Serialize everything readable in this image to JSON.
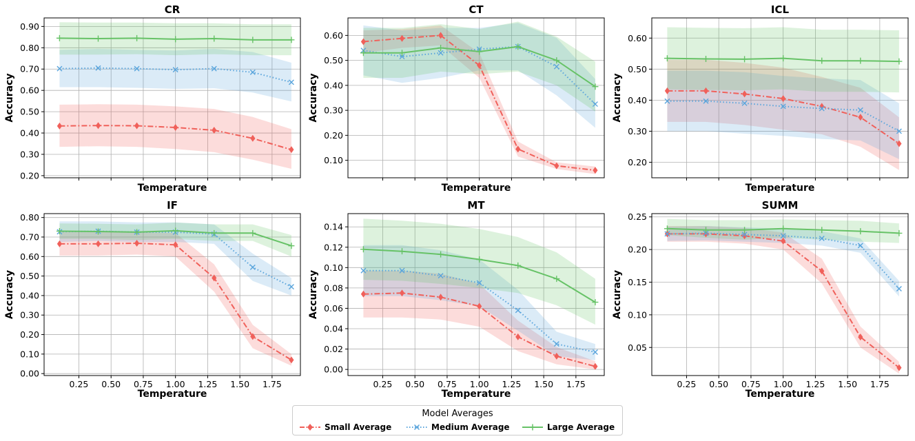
{
  "legend": {
    "title": "Model Averages",
    "entries": [
      "Small Average",
      "Medium Average",
      "Large Average"
    ]
  },
  "series_styles": [
    {
      "name": "Small Average",
      "color": "#f0605a",
      "marker": "diamond",
      "dash": "dashdot"
    },
    {
      "name": "Medium Average",
      "color": "#5aa5dc",
      "marker": "x",
      "dash": "dotted"
    },
    {
      "name": "Large Average",
      "color": "#66c266",
      "marker": "plus",
      "dash": "solid"
    }
  ],
  "chart_data": [
    {
      "type": "line",
      "title": "CR",
      "xlabel": "Temperature",
      "ylabel": "Accuracy",
      "x": [
        0.1,
        0.4,
        0.7,
        1.0,
        1.3,
        1.6,
        1.9
      ],
      "xlim": [
        -0.02,
        1.97
      ],
      "ylim": [
        0.19,
        0.94
      ],
      "xticks": [
        0.25,
        0.5,
        0.75,
        1.0,
        1.25,
        1.5,
        1.75
      ],
      "xtick_labels_visible": false,
      "yticks": [
        0.2,
        0.3,
        0.4,
        0.5,
        0.6,
        0.7,
        0.8,
        0.9
      ],
      "ytick_labels": [
        "0.20",
        "0.30",
        "0.40",
        "0.50",
        "0.60",
        "0.70",
        "0.80",
        "0.90"
      ],
      "grid": true,
      "series": [
        {
          "name": "Small Average",
          "values": [
            0.433,
            0.435,
            0.434,
            0.426,
            0.413,
            0.375,
            0.322
          ],
          "lower": [
            0.335,
            0.338,
            0.335,
            0.325,
            0.31,
            0.275,
            0.232
          ],
          "upper": [
            0.533,
            0.535,
            0.533,
            0.525,
            0.513,
            0.475,
            0.418
          ]
        },
        {
          "name": "Medium Average",
          "values": [
            0.702,
            0.705,
            0.702,
            0.697,
            0.702,
            0.685,
            0.638
          ],
          "lower": [
            0.615,
            0.615,
            0.612,
            0.607,
            0.61,
            0.59,
            0.548
          ],
          "upper": [
            0.79,
            0.795,
            0.79,
            0.787,
            0.795,
            0.78,
            0.73
          ]
        },
        {
          "name": "Large Average",
          "values": [
            0.845,
            0.843,
            0.845,
            0.84,
            0.843,
            0.837,
            0.837
          ],
          "lower": [
            0.768,
            0.768,
            0.77,
            0.765,
            0.77,
            0.765,
            0.765
          ],
          "upper": [
            0.92,
            0.918,
            0.918,
            0.915,
            0.915,
            0.91,
            0.91
          ]
        }
      ]
    },
    {
      "type": "line",
      "title": "CT",
      "xlabel": "Temperature",
      "ylabel": "Accuracy",
      "x": [
        0.1,
        0.4,
        0.7,
        1.0,
        1.3,
        1.6,
        1.9
      ],
      "xlim": [
        -0.02,
        1.97
      ],
      "ylim": [
        0.03,
        0.67
      ],
      "xticks": [
        0.25,
        0.5,
        0.75,
        1.0,
        1.25,
        1.5,
        1.75
      ],
      "xtick_labels_visible": false,
      "yticks": [
        0.1,
        0.2,
        0.3,
        0.4,
        0.5,
        0.6
      ],
      "ytick_labels": [
        "0.10",
        "0.20",
        "0.30",
        "0.40",
        "0.50",
        "0.60"
      ],
      "grid": true,
      "series": [
        {
          "name": "Small Average",
          "values": [
            0.575,
            0.588,
            0.6,
            0.48,
            0.145,
            0.078,
            0.06
          ],
          "lower": [
            0.53,
            0.55,
            0.56,
            0.43,
            0.115,
            0.065,
            0.045
          ],
          "upper": [
            0.62,
            0.625,
            0.64,
            0.53,
            0.175,
            0.092,
            0.075
          ]
        },
        {
          "name": "Medium Average",
          "values": [
            0.54,
            0.515,
            0.53,
            0.545,
            0.555,
            0.475,
            0.325
          ],
          "lower": [
            0.44,
            0.41,
            0.43,
            0.46,
            0.46,
            0.36,
            0.23
          ],
          "upper": [
            0.64,
            0.62,
            0.63,
            0.63,
            0.65,
            0.59,
            0.425
          ]
        },
        {
          "name": "Large Average",
          "values": [
            0.53,
            0.53,
            0.55,
            0.535,
            0.555,
            0.5,
            0.395
          ],
          "lower": [
            0.43,
            0.43,
            0.455,
            0.445,
            0.455,
            0.4,
            0.295
          ],
          "upper": [
            0.63,
            0.63,
            0.645,
            0.625,
            0.655,
            0.595,
            0.495
          ]
        }
      ]
    },
    {
      "type": "line",
      "title": "ICL",
      "xlabel": "Temperature",
      "ylabel": "Accuracy",
      "x": [
        0.1,
        0.4,
        0.7,
        1.0,
        1.3,
        1.6,
        1.9
      ],
      "xlim": [
        -0.02,
        1.97
      ],
      "ylim": [
        0.15,
        0.665
      ],
      "xticks": [
        0.25,
        0.5,
        0.75,
        1.0,
        1.25,
        1.5,
        1.75
      ],
      "xtick_labels_visible": false,
      "yticks": [
        0.2,
        0.3,
        0.4,
        0.5,
        0.6
      ],
      "ytick_labels": [
        "0.20",
        "0.30",
        "0.40",
        "0.50",
        "0.60"
      ],
      "grid": true,
      "series": [
        {
          "name": "Small Average",
          "values": [
            0.43,
            0.43,
            0.42,
            0.405,
            0.38,
            0.345,
            0.26
          ],
          "lower": [
            0.33,
            0.33,
            0.32,
            0.305,
            0.29,
            0.25,
            0.175
          ],
          "upper": [
            0.53,
            0.53,
            0.52,
            0.505,
            0.475,
            0.44,
            0.345
          ]
        },
        {
          "name": "Medium Average",
          "values": [
            0.397,
            0.397,
            0.39,
            0.38,
            0.373,
            0.368,
            0.3
          ],
          "lower": [
            0.3,
            0.3,
            0.292,
            0.285,
            0.275,
            0.27,
            0.21
          ],
          "upper": [
            0.495,
            0.495,
            0.49,
            0.478,
            0.47,
            0.465,
            0.39
          ]
        },
        {
          "name": "Large Average",
          "values": [
            0.535,
            0.533,
            0.532,
            0.535,
            0.527,
            0.527,
            0.525
          ],
          "lower": [
            0.435,
            0.433,
            0.432,
            0.435,
            0.427,
            0.427,
            0.425
          ],
          "upper": [
            0.635,
            0.633,
            0.632,
            0.635,
            0.627,
            0.627,
            0.625
          ]
        }
      ]
    },
    {
      "type": "line",
      "title": "IF",
      "xlabel": "Temperature",
      "ylabel": "Accuracy",
      "x": [
        0.1,
        0.4,
        0.7,
        1.0,
        1.3,
        1.6,
        1.9
      ],
      "xlim": [
        -0.02,
        1.97
      ],
      "ylim": [
        -0.01,
        0.82
      ],
      "xticks": [
        0.25,
        0.5,
        0.75,
        1.0,
        1.25,
        1.5,
        1.75
      ],
      "xtick_labels": [
        "0.25",
        "0.50",
        "0.75",
        "1.00",
        "1.25",
        "1.50",
        "1.75"
      ],
      "xtick_labels_visible": true,
      "yticks": [
        0.0,
        0.1,
        0.2,
        0.3,
        0.4,
        0.5,
        0.6,
        0.7,
        0.8
      ],
      "ytick_labels": [
        "0.00",
        "0.10",
        "0.20",
        "0.30",
        "0.40",
        "0.50",
        "0.60",
        "0.70",
        "0.80"
      ],
      "grid": true,
      "series": [
        {
          "name": "Small Average",
          "values": [
            0.665,
            0.665,
            0.668,
            0.66,
            0.49,
            0.19,
            0.07
          ],
          "lower": [
            0.605,
            0.605,
            0.61,
            0.6,
            0.42,
            0.13,
            0.04
          ],
          "upper": [
            0.725,
            0.725,
            0.725,
            0.72,
            0.56,
            0.25,
            0.1
          ]
        },
        {
          "name": "Medium Average",
          "values": [
            0.727,
            0.73,
            0.725,
            0.725,
            0.715,
            0.545,
            0.445
          ],
          "lower": [
            0.675,
            0.68,
            0.675,
            0.675,
            0.665,
            0.475,
            0.4
          ],
          "upper": [
            0.78,
            0.78,
            0.775,
            0.775,
            0.765,
            0.615,
            0.49
          ]
        },
        {
          "name": "Large Average",
          "values": [
            0.73,
            0.728,
            0.725,
            0.732,
            0.72,
            0.72,
            0.655
          ],
          "lower": [
            0.69,
            0.69,
            0.685,
            0.69,
            0.68,
            0.68,
            0.6
          ],
          "upper": [
            0.77,
            0.768,
            0.765,
            0.774,
            0.765,
            0.765,
            0.71
          ]
        }
      ]
    },
    {
      "type": "line",
      "title": "MT",
      "xlabel": "Temperature",
      "ylabel": "Accuracy",
      "x": [
        0.1,
        0.4,
        0.7,
        1.0,
        1.3,
        1.6,
        1.9
      ],
      "xlim": [
        -0.02,
        1.97
      ],
      "ylim": [
        -0.006,
        0.153
      ],
      "xticks": [
        0.25,
        0.5,
        0.75,
        1.0,
        1.25,
        1.5,
        1.75
      ],
      "xtick_labels": [
        "0.25",
        "0.50",
        "0.75",
        "1.00",
        "1.25",
        "1.50",
        "1.75"
      ],
      "xtick_labels_visible": true,
      "yticks": [
        0.0,
        0.02,
        0.04,
        0.06,
        0.08,
        0.1,
        0.12,
        0.14
      ],
      "ytick_labels": [
        "0.00",
        "0.02",
        "0.04",
        "0.06",
        "0.08",
        "0.10",
        "0.12",
        "0.14"
      ],
      "grid": true,
      "series": [
        {
          "name": "Small Average",
          "values": [
            0.074,
            0.075,
            0.071,
            0.062,
            0.032,
            0.013,
            0.003
          ],
          "lower": [
            0.051,
            0.051,
            0.049,
            0.042,
            0.018,
            0.005,
            0.0
          ],
          "upper": [
            0.097,
            0.097,
            0.094,
            0.084,
            0.048,
            0.022,
            0.008
          ]
        },
        {
          "name": "Medium Average",
          "values": [
            0.097,
            0.097,
            0.092,
            0.085,
            0.058,
            0.025,
            0.017
          ],
          "lower": [
            0.072,
            0.072,
            0.068,
            0.062,
            0.038,
            0.013,
            0.009
          ],
          "upper": [
            0.122,
            0.122,
            0.117,
            0.108,
            0.078,
            0.037,
            0.025
          ]
        },
        {
          "name": "Large Average",
          "values": [
            0.118,
            0.116,
            0.113,
            0.108,
            0.102,
            0.089,
            0.066
          ],
          "lower": [
            0.088,
            0.087,
            0.084,
            0.08,
            0.075,
            0.063,
            0.044
          ],
          "upper": [
            0.148,
            0.146,
            0.143,
            0.138,
            0.13,
            0.115,
            0.089
          ]
        }
      ]
    },
    {
      "type": "line",
      "title": "SUMM",
      "xlabel": "Temperature",
      "ylabel": "Accuracy",
      "x": [
        0.1,
        0.4,
        0.7,
        1.0,
        1.3,
        1.6,
        1.9
      ],
      "xlim": [
        -0.02,
        1.97
      ],
      "ylim": [
        0.007,
        0.255
      ],
      "xticks": [
        0.25,
        0.5,
        0.75,
        1.0,
        1.25,
        1.5,
        1.75
      ],
      "xtick_labels": [
        "0.25",
        "0.50",
        "0.75",
        "1.00",
        "1.25",
        "1.50",
        "1.75"
      ],
      "xtick_labels_visible": true,
      "yticks": [
        0.05,
        0.1,
        0.15,
        0.2,
        0.25
      ],
      "ytick_labels": [
        "0.05",
        "0.10",
        "0.15",
        "0.20",
        "0.25"
      ],
      "grid": true,
      "series": [
        {
          "name": "Small Average",
          "values": [
            0.224,
            0.224,
            0.221,
            0.213,
            0.167,
            0.066,
            0.019
          ],
          "lower": [
            0.212,
            0.212,
            0.209,
            0.2,
            0.148,
            0.05,
            0.01
          ],
          "upper": [
            0.236,
            0.236,
            0.233,
            0.226,
            0.186,
            0.082,
            0.028
          ]
        },
        {
          "name": "Medium Average",
          "values": [
            0.224,
            0.225,
            0.223,
            0.221,
            0.217,
            0.206,
            0.14
          ],
          "lower": [
            0.213,
            0.214,
            0.212,
            0.21,
            0.206,
            0.195,
            0.128
          ],
          "upper": [
            0.235,
            0.236,
            0.234,
            0.232,
            0.228,
            0.217,
            0.152
          ]
        },
        {
          "name": "Large Average",
          "values": [
            0.232,
            0.23,
            0.23,
            0.232,
            0.23,
            0.228,
            0.225
          ],
          "lower": [
            0.222,
            0.218,
            0.215,
            0.218,
            0.215,
            0.212,
            0.21
          ],
          "upper": [
            0.247,
            0.245,
            0.245,
            0.246,
            0.245,
            0.244,
            0.24
          ]
        }
      ]
    }
  ]
}
